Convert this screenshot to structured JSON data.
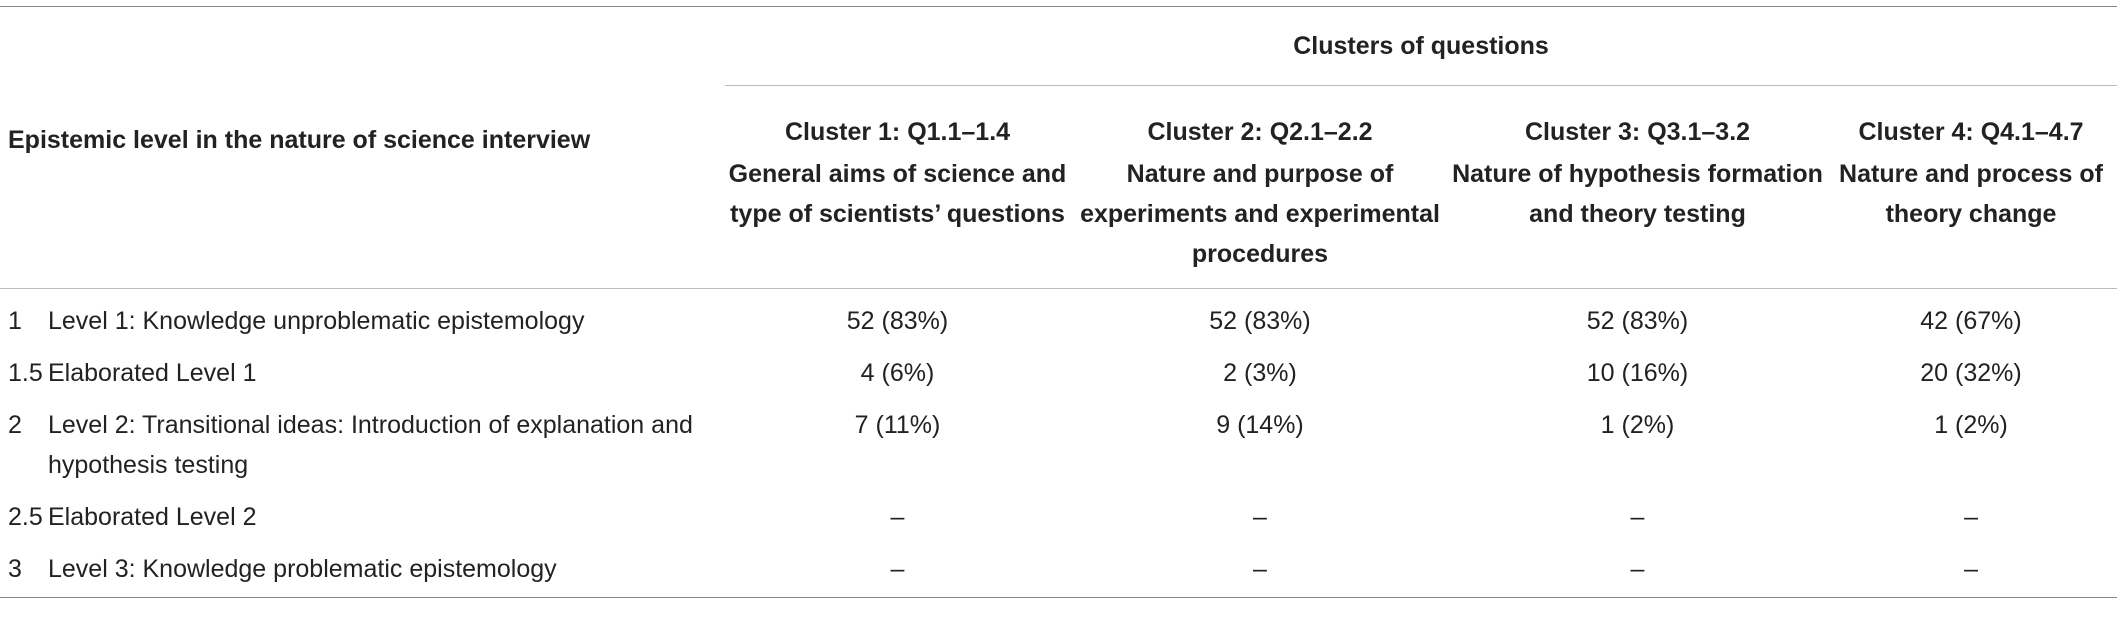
{
  "header": {
    "clusters_title": "Clusters of questions",
    "level_column": "Epistemic level in the nature of science interview",
    "clusters": [
      {
        "id": "Cluster 1: Q1.1–1.4",
        "desc": "General aims of science and type of scientists’ questions"
      },
      {
        "id": "Cluster 2: Q2.1–2.2",
        "desc": "Nature and purpose of experiments and experimental procedures"
      },
      {
        "id": "Cluster 3: Q3.1–3.2",
        "desc": "Nature of hypothesis formation and theory testing"
      },
      {
        "id": "Cluster 4: Q4.1–4.7",
        "desc": "Nature and process of theory change"
      }
    ]
  },
  "rows": [
    {
      "num": "1",
      "label": "Level 1: Knowledge unproblematic epistemology",
      "values": [
        "52 (83%)",
        "52 (83%)",
        "52 (83%)",
        "42 (67%)"
      ]
    },
    {
      "num": "1.5",
      "label": "Elaborated Level 1",
      "values": [
        "4 (6%)",
        "2 (3%)",
        "10 (16%)",
        "20 (32%)"
      ]
    },
    {
      "num": "2",
      "label": "Level 2: Transitional ideas: Introduction of explanation and hypothesis testing",
      "values": [
        "7 (11%)",
        "9 (14%)",
        "1 (2%)",
        "1 (2%)"
      ]
    },
    {
      "num": "2.5",
      "label": "Elaborated Level 2",
      "values": [
        "–",
        "–",
        "–",
        "–"
      ]
    },
    {
      "num": "3",
      "label": "Level 3: Knowledge problematic epistemology",
      "values": [
        "–",
        "–",
        "–",
        "–"
      ]
    }
  ]
}
